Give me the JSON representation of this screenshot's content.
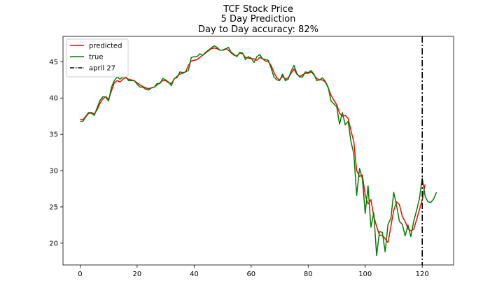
{
  "chart_data": {
    "type": "line",
    "title": [
      "TCF Stock Price",
      "5 Day Prediction",
      "Day to Day accuracy: 82%"
    ],
    "xlabel": "",
    "ylabel": "",
    "xlim": [
      -6,
      131
    ],
    "ylim": [
      17,
      48.5
    ],
    "xticks": [
      0,
      20,
      40,
      60,
      80,
      100,
      120
    ],
    "yticks": [
      20,
      25,
      30,
      35,
      40,
      45
    ],
    "grid": false,
    "legend_position": "top-left",
    "series": [
      {
        "name": "predicted",
        "color": "#ff0000",
        "points": [
          [
            0,
            37.1
          ],
          [
            1,
            37.0
          ],
          [
            2,
            37.5
          ],
          [
            3,
            38.0
          ],
          [
            4,
            38.0
          ],
          [
            5,
            37.8
          ],
          [
            6,
            38.4
          ],
          [
            7,
            39.3
          ],
          [
            8,
            39.9
          ],
          [
            9,
            40.2
          ],
          [
            10,
            39.8
          ],
          [
            11,
            41.0
          ],
          [
            12,
            42.1
          ],
          [
            13,
            42.4
          ],
          [
            14,
            42.2
          ],
          [
            15,
            42.6
          ],
          [
            16,
            42.8
          ],
          [
            17,
            42.6
          ],
          [
            18,
            42.5
          ],
          [
            19,
            42.4
          ],
          [
            20,
            42.1
          ],
          [
            21,
            41.8
          ],
          [
            22,
            41.6
          ],
          [
            23,
            41.4
          ],
          [
            24,
            41.3
          ],
          [
            25,
            41.4
          ],
          [
            26,
            41.5
          ],
          [
            27,
            41.8
          ],
          [
            28,
            42.1
          ],
          [
            29,
            42.4
          ],
          [
            30,
            42.4
          ],
          [
            31,
            42.1
          ],
          [
            32,
            42.0
          ],
          [
            33,
            42.6
          ],
          [
            34,
            43.0
          ],
          [
            35,
            43.3
          ],
          [
            36,
            43.4
          ],
          [
            37,
            43.6
          ],
          [
            38,
            44.5
          ],
          [
            39,
            45.1
          ],
          [
            40,
            45.2
          ],
          [
            41,
            45.3
          ],
          [
            42,
            45.6
          ],
          [
            43,
            45.9
          ],
          [
            44,
            46.2
          ],
          [
            45,
            46.5
          ],
          [
            46,
            46.8
          ],
          [
            47,
            46.9
          ],
          [
            48,
            46.8
          ],
          [
            49,
            46.6
          ],
          [
            50,
            46.6
          ],
          [
            51,
            46.8
          ],
          [
            52,
            46.6
          ],
          [
            53,
            46.2
          ],
          [
            54,
            45.9
          ],
          [
            55,
            45.8
          ],
          [
            56,
            46.2
          ],
          [
            57,
            46.1
          ],
          [
            58,
            45.6
          ],
          [
            59,
            45.5
          ],
          [
            60,
            45.4
          ],
          [
            61,
            45.4
          ],
          [
            62,
            45.2
          ],
          [
            63,
            45.6
          ],
          [
            64,
            45.4
          ],
          [
            65,
            45.1
          ],
          [
            66,
            45.0
          ],
          [
            67,
            44.5
          ],
          [
            68,
            43.5
          ],
          [
            69,
            42.8
          ],
          [
            70,
            42.5
          ],
          [
            71,
            43.0
          ],
          [
            72,
            42.6
          ],
          [
            73,
            42.8
          ],
          [
            74,
            43.4
          ],
          [
            75,
            44.0
          ],
          [
            76,
            43.3
          ],
          [
            77,
            43.0
          ],
          [
            78,
            43.2
          ],
          [
            79,
            43.4
          ],
          [
            80,
            43.4
          ],
          [
            81,
            43.6
          ],
          [
            82,
            43.2
          ],
          [
            83,
            42.7
          ],
          [
            84,
            42.5
          ],
          [
            85,
            42.5
          ],
          [
            86,
            42.2
          ],
          [
            87,
            41.4
          ],
          [
            88,
            40.4
          ],
          [
            89,
            39.7
          ],
          [
            90,
            39.1
          ],
          [
            91,
            37.9
          ],
          [
            92,
            37.5
          ],
          [
            93,
            37.6
          ],
          [
            94,
            37.2
          ],
          [
            95,
            35.5
          ],
          [
            96,
            34.0
          ],
          [
            97,
            30.0
          ],
          [
            98,
            29.2
          ],
          [
            99,
            29.4
          ],
          [
            100,
            26.6
          ],
          [
            101,
            25.4
          ],
          [
            102,
            26.0
          ],
          [
            103,
            23.7
          ],
          [
            104,
            22.3
          ],
          [
            105,
            21.1
          ],
          [
            106,
            21.1
          ],
          [
            107,
            20.6
          ],
          [
            108,
            20.1
          ],
          [
            109,
            22.3
          ],
          [
            110,
            24.5
          ],
          [
            111,
            25.7
          ],
          [
            112,
            25.3
          ],
          [
            113,
            23.7
          ],
          [
            114,
            23.0
          ],
          [
            115,
            22.0
          ],
          [
            116,
            21.7
          ],
          [
            117,
            21.9
          ],
          [
            118,
            23.2
          ],
          [
            119,
            24.6
          ],
          [
            120,
            26.0
          ],
          [
            121,
            28.1
          ]
        ]
      },
      {
        "name": "true",
        "color": "#008000",
        "points": [
          [
            0,
            36.8
          ],
          [
            1,
            36.8
          ],
          [
            2,
            37.4
          ],
          [
            3,
            37.9
          ],
          [
            4,
            37.9
          ],
          [
            5,
            37.6
          ],
          [
            6,
            38.7
          ],
          [
            7,
            39.7
          ],
          [
            8,
            40.2
          ],
          [
            9,
            40.1
          ],
          [
            10,
            39.6
          ],
          [
            11,
            41.5
          ],
          [
            12,
            42.4
          ],
          [
            13,
            42.9
          ],
          [
            14,
            42.6
          ],
          [
            15,
            42.9
          ],
          [
            16,
            42.9
          ],
          [
            17,
            42.4
          ],
          [
            18,
            42.4
          ],
          [
            19,
            42.4
          ],
          [
            20,
            41.9
          ],
          [
            21,
            41.5
          ],
          [
            22,
            41.5
          ],
          [
            23,
            41.2
          ],
          [
            24,
            41.1
          ],
          [
            25,
            41.4
          ],
          [
            26,
            41.5
          ],
          [
            27,
            42.0
          ],
          [
            28,
            42.0
          ],
          [
            29,
            42.7
          ],
          [
            30,
            42.5
          ],
          [
            31,
            42.2
          ],
          [
            32,
            41.7
          ],
          [
            33,
            42.7
          ],
          [
            34,
            42.8
          ],
          [
            35,
            43.6
          ],
          [
            36,
            43.5
          ],
          [
            37,
            43.6
          ],
          [
            38,
            43.8
          ],
          [
            39,
            45.6
          ],
          [
            40,
            45.7
          ],
          [
            41,
            45.7
          ],
          [
            42,
            46.1
          ],
          [
            43,
            45.9
          ],
          [
            44,
            46.3
          ],
          [
            45,
            46.6
          ],
          [
            46,
            46.9
          ],
          [
            47,
            47.2
          ],
          [
            48,
            47.0
          ],
          [
            49,
            46.6
          ],
          [
            50,
            46.6
          ],
          [
            51,
            46.7
          ],
          [
            52,
            47.0
          ],
          [
            53,
            46.3
          ],
          [
            54,
            46.0
          ],
          [
            55,
            45.7
          ],
          [
            56,
            46.3
          ],
          [
            57,
            46.2
          ],
          [
            58,
            45.3
          ],
          [
            59,
            45.7
          ],
          [
            60,
            45.5
          ],
          [
            61,
            44.9
          ],
          [
            62,
            45.7
          ],
          [
            63,
            46.0
          ],
          [
            64,
            45.4
          ],
          [
            65,
            45.3
          ],
          [
            66,
            45.2
          ],
          [
            67,
            44.1
          ],
          [
            68,
            42.9
          ],
          [
            69,
            42.5
          ],
          [
            70,
            42.4
          ],
          [
            71,
            43.3
          ],
          [
            72,
            42.4
          ],
          [
            73,
            42.6
          ],
          [
            74,
            43.7
          ],
          [
            75,
            44.5
          ],
          [
            76,
            43.4
          ],
          [
            77,
            42.9
          ],
          [
            78,
            42.9
          ],
          [
            79,
            43.6
          ],
          [
            80,
            43.5
          ],
          [
            81,
            43.8
          ],
          [
            82,
            43.3
          ],
          [
            83,
            42.4
          ],
          [
            84,
            42.5
          ],
          [
            85,
            42.8
          ],
          [
            86,
            42.3
          ],
          [
            87,
            41.5
          ],
          [
            88,
            39.6
          ],
          [
            89,
            39.2
          ],
          [
            90,
            38.8
          ],
          [
            91,
            36.4
          ],
          [
            92,
            38.0
          ],
          [
            93,
            36.3
          ],
          [
            94,
            36.8
          ],
          [
            95,
            34.0
          ],
          [
            96,
            32.3
          ],
          [
            97,
            26.6
          ],
          [
            98,
            30.3
          ],
          [
            99,
            28.9
          ],
          [
            100,
            24.1
          ],
          [
            101,
            27.9
          ],
          [
            102,
            22.2
          ],
          [
            103,
            24.2
          ],
          [
            104,
            18.3
          ],
          [
            105,
            21.6
          ],
          [
            106,
            21.5
          ],
          [
            107,
            18.8
          ],
          [
            108,
            22.6
          ],
          [
            109,
            23.4
          ],
          [
            110,
            27.0
          ],
          [
            111,
            25.2
          ],
          [
            112,
            23.0
          ],
          [
            113,
            22.6
          ],
          [
            114,
            21.0
          ],
          [
            115,
            22.5
          ],
          [
            116,
            20.9
          ],
          [
            117,
            23.0
          ],
          [
            118,
            24.5
          ],
          [
            119,
            26.1
          ],
          [
            120,
            29.0
          ],
          [
            121,
            26.5
          ],
          [
            122,
            25.7
          ],
          [
            123,
            25.6
          ],
          [
            124,
            26.1
          ],
          [
            125,
            27.0
          ]
        ]
      }
    ],
    "vline": {
      "name": "april 27",
      "x": 120,
      "color": "#000000",
      "style": "dashdot"
    }
  }
}
